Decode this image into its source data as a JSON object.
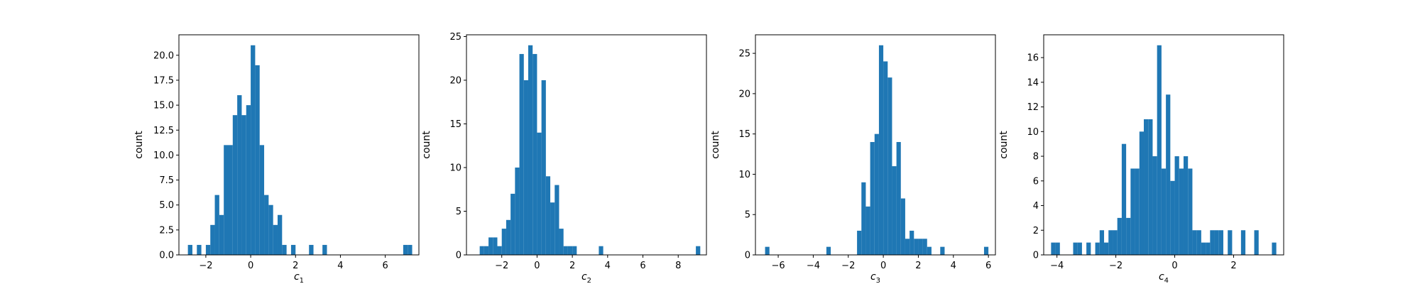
{
  "chart_data": [
    {
      "type": "bar",
      "xlabel": "c",
      "xlabel_sub": "1",
      "ylabel": "count",
      "xlim": [
        -3.2,
        7.5
      ],
      "ylim": [
        0,
        22.05
      ],
      "xticks": [
        -2,
        0,
        2,
        4,
        6
      ],
      "yticks": [
        0,
        2.5,
        5,
        7.5,
        10,
        12.5,
        15,
        17.5,
        20
      ],
      "ytick_labels": [
        "0.0",
        "2.5",
        "5.0",
        "7.5",
        "10.0",
        "12.5",
        "15.0",
        "17.5",
        "20.0"
      ],
      "bar_color": "#1f77b4",
      "bin_edges": [
        -2.8,
        -2.6,
        -2.4,
        -2.2,
        -2.0,
        -1.8,
        -1.6,
        -1.4,
        -1.2,
        -1.0,
        -0.8,
        -0.6,
        -0.4,
        -0.2,
        0.0,
        0.2,
        0.4,
        0.6,
        0.8,
        1.0,
        1.2,
        1.4,
        1.6,
        1.8,
        2.0,
        2.2,
        2.4,
        2.6,
        2.8,
        3.0,
        3.2,
        3.4,
        3.6,
        3.8,
        4.0,
        4.2,
        4.4,
        4.6,
        4.8,
        5.0,
        5.2,
        5.4,
        5.6,
        5.8,
        6.0,
        6.2,
        6.4,
        6.6,
        6.8,
        7.0,
        7.2
      ],
      "counts": [
        1,
        0,
        1,
        0,
        1,
        3,
        6,
        4,
        11,
        11,
        14,
        16,
        14,
        15,
        21,
        19,
        11,
        6,
        5,
        3,
        4,
        1,
        0,
        1,
        0,
        0,
        0,
        1,
        0,
        0,
        1,
        0,
        0,
        0,
        0,
        0,
        0,
        0,
        0,
        0,
        0,
        0,
        0,
        0,
        0,
        0,
        0,
        0,
        1,
        1
      ]
    },
    {
      "type": "bar",
      "xlabel": "c",
      "xlabel_sub": "2",
      "ylabel": "count",
      "xlim": [
        -4.0,
        9.6
      ],
      "ylim": [
        0,
        25.2
      ],
      "xticks": [
        -2,
        0,
        2,
        4,
        6,
        8
      ],
      "yticks": [
        0,
        5,
        10,
        15,
        20,
        25
      ],
      "ytick_labels": [
        "0",
        "5",
        "10",
        "15",
        "20",
        "25"
      ],
      "bar_color": "#1f77b4",
      "bin_edges": [
        -3.25,
        -3.0,
        -2.75,
        -2.5,
        -2.25,
        -2.0,
        -1.75,
        -1.5,
        -1.25,
        -1.0,
        -0.75,
        -0.5,
        -0.25,
        0.0,
        0.25,
        0.5,
        0.75,
        1.0,
        1.25,
        1.5,
        1.75,
        2.0,
        2.25,
        2.5,
        2.75,
        3.0,
        3.25,
        3.5,
        3.75,
        4.0,
        4.25,
        4.5,
        4.75,
        5.0,
        5.25,
        5.5,
        5.75,
        6.0,
        6.25,
        6.5,
        6.75,
        7.0,
        7.25,
        7.5,
        7.75,
        8.0,
        8.25,
        8.5,
        8.75,
        9.0,
        9.25
      ],
      "counts": [
        1,
        1,
        2,
        2,
        1,
        3,
        4,
        7,
        10,
        23,
        20,
        24,
        23,
        14,
        20,
        9,
        6,
        8,
        3,
        1,
        1,
        1,
        0,
        0,
        0,
        0,
        0,
        1,
        0,
        0,
        0,
        0,
        0,
        0,
        0,
        0,
        0,
        0,
        0,
        0,
        0,
        0,
        0,
        0,
        0,
        0,
        0,
        0,
        0,
        1
      ]
    },
    {
      "type": "bar",
      "xlabel": "c",
      "xlabel_sub": "3",
      "ylabel": "count",
      "xlim": [
        -7.3,
        6.4
      ],
      "ylim": [
        0,
        27.3
      ],
      "xticks": [
        -6,
        -4,
        -2,
        0,
        2,
        4,
        6
      ],
      "yticks": [
        0,
        5,
        10,
        15,
        20,
        25
      ],
      "ytick_labels": [
        "0",
        "5",
        "10",
        "15",
        "20",
        "25"
      ],
      "bar_color": "#1f77b4",
      "bin_edges": [
        -6.75,
        -6.5,
        -6.25,
        -6.0,
        -5.75,
        -5.5,
        -5.25,
        -5.0,
        -4.75,
        -4.5,
        -4.25,
        -4.0,
        -3.75,
        -3.5,
        -3.25,
        -3.0,
        -2.75,
        -2.5,
        -2.25,
        -2.0,
        -1.75,
        -1.5,
        -1.25,
        -1.0,
        -0.75,
        -0.5,
        -0.25,
        0.0,
        0.25,
        0.5,
        0.75,
        1.0,
        1.25,
        1.5,
        1.75,
        2.0,
        2.25,
        2.5,
        2.75,
        3.0,
        3.25,
        3.5,
        3.75,
        4.0,
        4.25,
        4.5,
        4.75,
        5.0,
        5.25,
        5.5,
        5.75,
        6.0
      ],
      "counts": [
        1,
        0,
        0,
        0,
        0,
        0,
        0,
        0,
        0,
        0,
        0,
        0,
        0,
        0,
        1,
        0,
        0,
        0,
        0,
        0,
        0,
        3,
        9,
        6,
        14,
        15,
        26,
        24,
        22,
        11,
        14,
        7,
        2,
        3,
        2,
        2,
        2,
        1,
        0,
        0,
        1,
        0,
        0,
        0,
        0,
        0,
        0,
        0,
        0,
        0,
        1
      ]
    },
    {
      "type": "bar",
      "xlabel": "c",
      "xlabel_sub": "4",
      "ylabel": "count",
      "xlim": [
        -4.45,
        3.7
      ],
      "ylim": [
        0,
        17.85
      ],
      "xticks": [
        -4,
        -2,
        0,
        2
      ],
      "yticks": [
        0,
        2,
        4,
        6,
        8,
        10,
        12,
        14,
        16
      ],
      "ytick_labels": [
        "0",
        "2",
        "4",
        "6",
        "8",
        "10",
        "12",
        "14",
        "16"
      ],
      "bar_color": "#1f77b4",
      "bin_edges": [
        -4.2,
        -4.05,
        -3.9,
        -3.75,
        -3.6,
        -3.45,
        -3.3,
        -3.15,
        -3.0,
        -2.85,
        -2.7,
        -2.55,
        -2.4,
        -2.25,
        -2.1,
        -1.95,
        -1.8,
        -1.65,
        -1.5,
        -1.35,
        -1.2,
        -1.05,
        -0.9,
        -0.75,
        -0.6,
        -0.45,
        -0.3,
        -0.15,
        0.0,
        0.15,
        0.3,
        0.45,
        0.6,
        0.75,
        0.9,
        1.05,
        1.2,
        1.35,
        1.5,
        1.65,
        1.8,
        1.95,
        2.1,
        2.25,
        2.4,
        2.55,
        2.7,
        2.85,
        3.0,
        3.15,
        3.3,
        3.45
      ],
      "counts": [
        1,
        1,
        0,
        0,
        0,
        1,
        1,
        0,
        1,
        0,
        1,
        2,
        1,
        2,
        2,
        3,
        9,
        3,
        7,
        7,
        10,
        11,
        11,
        8,
        17,
        7,
        13,
        6,
        8,
        7,
        8,
        7,
        2,
        2,
        1,
        1,
        2,
        2,
        2,
        0,
        2,
        0,
        0,
        2,
        0,
        0,
        2,
        0,
        0,
        0,
        1
      ]
    }
  ]
}
